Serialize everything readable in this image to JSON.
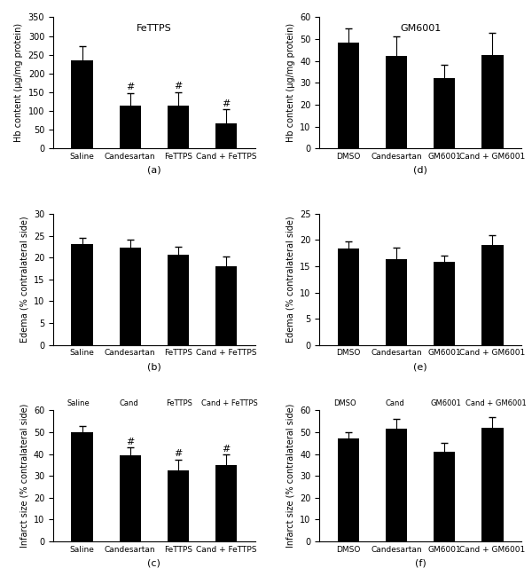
{
  "chart_data": [
    {
      "type": "bar",
      "title": "FeTTPS",
      "xlabel": "(a)",
      "ylabel": "Hb content (μg/mg protein)",
      "categories": [
        "Saline",
        "Candesartan",
        "FeTTPS",
        "Cand + FeTTPS"
      ],
      "values": [
        234,
        113,
        115,
        67
      ],
      "errors": [
        38,
        35,
        35,
        37
      ],
      "color": "#000000",
      "ylim": [
        0,
        350
      ],
      "yticks": [
        0,
        50,
        100,
        150,
        200,
        250,
        300,
        350
      ],
      "annotations": [
        {
          "category": "Candesartan",
          "text": "#"
        },
        {
          "category": "FeTTPS",
          "text": "#"
        },
        {
          "category": "Cand + FeTTPS",
          "text": "#"
        }
      ]
    },
    {
      "type": "bar",
      "title": "GM6001",
      "xlabel": "(d)",
      "ylabel": "Hb content (μg/mg protein)",
      "categories": [
        "DMSO",
        "Candesartan",
        "GM6001",
        "Cand + GM6001"
      ],
      "values": [
        48.5,
        42.2,
        32.2,
        42.7
      ],
      "errors": [
        6.5,
        9,
        6,
        10
      ],
      "color": "#000000",
      "ylim": [
        0,
        60
      ],
      "yticks": [
        0,
        10,
        20,
        30,
        40,
        50,
        60
      ]
    },
    {
      "type": "bar",
      "xlabel": "(b)",
      "ylabel": "Edema (% contralateral side)",
      "categories": [
        "Saline",
        "Candesartan",
        "FeTTPS",
        "Cand + FeTTPS"
      ],
      "values": [
        23,
        22.3,
        20.7,
        18
      ],
      "errors": [
        1.5,
        1.8,
        1.8,
        2.2
      ],
      "color": "#000000",
      "ylim": [
        0,
        30
      ],
      "yticks": [
        0,
        5,
        10,
        15,
        20,
        25,
        30
      ]
    },
    {
      "type": "bar",
      "xlabel": "(e)",
      "ylabel": "Edema (% contralateral side)",
      "categories": [
        "DMSO",
        "Candesartan",
        "GM6001",
        "Cand + GM6001"
      ],
      "values": [
        18.4,
        16.3,
        15.8,
        19.1
      ],
      "errors": [
        1.3,
        2.3,
        1.2,
        1.8
      ],
      "color": "#000000",
      "ylim": [
        0,
        25
      ],
      "yticks": [
        0,
        5,
        10,
        15,
        20,
        25
      ]
    },
    {
      "type": "bar",
      "xlabel": "(c)",
      "ylabel": "Infarct size (% contralateral side)",
      "categories": [
        "Saline",
        "Candesartan",
        "FeTTPS",
        "Cand + FeTTPS"
      ],
      "values": [
        50,
        39.5,
        32.5,
        34.8
      ],
      "errors": [
        3,
        3.5,
        5,
        5
      ],
      "color": "#000000",
      "ylim": [
        0,
        60
      ],
      "yticks": [
        0,
        10,
        20,
        30,
        40,
        50,
        60
      ],
      "annotations": [
        {
          "category": "Candesartan",
          "text": "#"
        },
        {
          "category": "FeTTPS",
          "text": "#"
        },
        {
          "category": "Cand + FeTTPS",
          "text": "#"
        }
      ],
      "image_labels": [
        "Saline",
        "Cand",
        "FeTTPS",
        "Cand + FeTTPS"
      ]
    },
    {
      "type": "bar",
      "xlabel": "(f)",
      "ylabel": "Infarct size (% contralateral side)",
      "categories": [
        "DMSO",
        "Candesartan",
        "GM6001",
        "Cand + GM6001"
      ],
      "values": [
        47,
        51.5,
        41,
        52
      ],
      "errors": [
        3,
        4.5,
        4,
        5
      ],
      "color": "#000000",
      "ylim": [
        0,
        60
      ],
      "yticks": [
        0,
        10,
        20,
        30,
        40,
        50,
        60
      ],
      "image_labels": [
        "DMSO",
        "Cand",
        "GM6001",
        "Cand + GM6001"
      ]
    }
  ]
}
